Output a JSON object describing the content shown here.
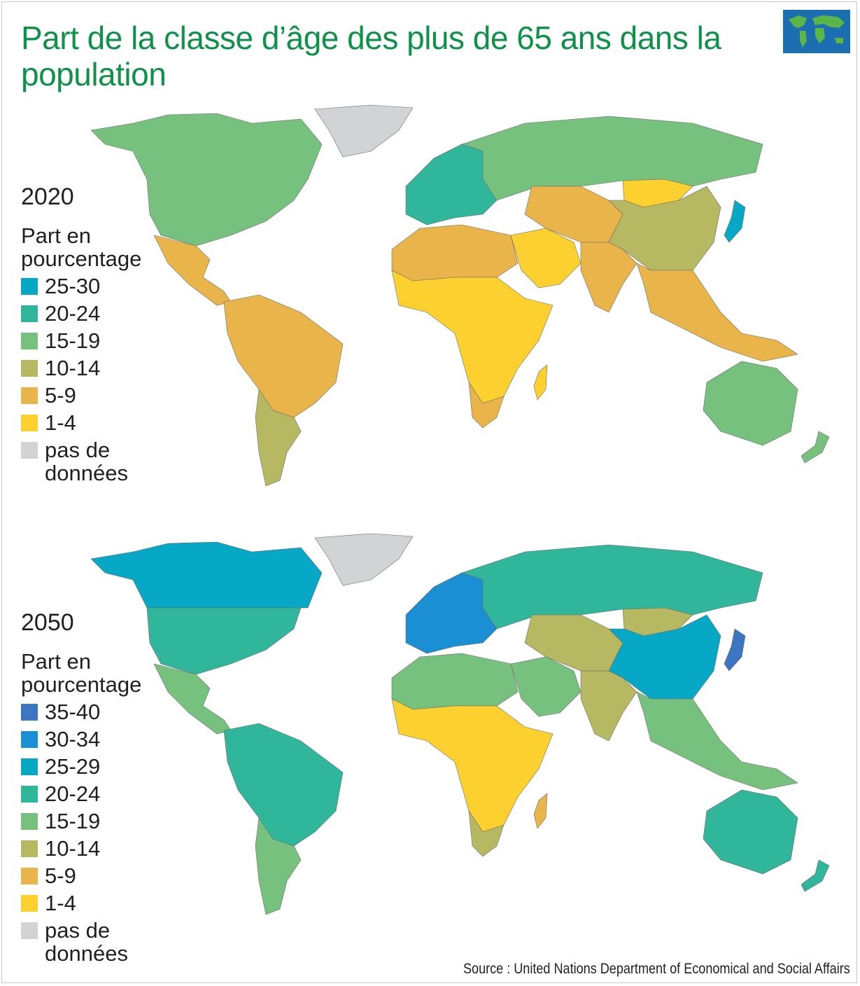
{
  "title": "Part de la classe d’âge des plus de 65 ans dans la population",
  "source": "Source : United Nations Department of Economical and Social Affairs",
  "colors": {
    "c35_40": "#3c75c1",
    "c30_34": "#1a8fd4",
    "c25_30": "#06a8c6",
    "c20_24": "#30b69b",
    "c15_19": "#77c17e",
    "c10_14": "#b7b862",
    "c5_9": "#e9b449",
    "c1_4": "#fcd12f",
    "nodata": "#d2d3d5",
    "title": "#0e9149"
  },
  "maps": [
    {
      "year": "2020",
      "legend_title": "Part en pourcentage",
      "legend": [
        {
          "label": "25-30",
          "color": "#06a8c6"
        },
        {
          "label": "20-24",
          "color": "#30b69b"
        },
        {
          "label": "15-19",
          "color": "#77c17e"
        },
        {
          "label": "10-14",
          "color": "#b7b862"
        },
        {
          "label": "5-9",
          "color": "#e9b449"
        },
        {
          "label": "1-4",
          "color": "#fcd12f"
        },
        {
          "label": "pas de données",
          "color": "#d2d3d5"
        }
      ],
      "regions": {
        "north_america": "#77c17e",
        "greenland": "#d2d3d5",
        "central_america": "#e9b449",
        "south_america_north": "#e9b449",
        "south_america_south": "#b7b862",
        "europe": "#30b69b",
        "russia": "#77c17e",
        "north_africa": "#e9b449",
        "africa": "#fcd12f",
        "southern_africa": "#e9b449",
        "middle_east": "#fcd12f",
        "central_asia": "#e9b449",
        "mongolia": "#fcd12f",
        "china": "#b7b862",
        "india": "#e9b449",
        "southeast_asia": "#e9b449",
        "japan": "#06a8c6",
        "australia": "#77c17e",
        "new_zealand": "#77c17e",
        "madagascar": "#fcd12f"
      }
    },
    {
      "year": "2050",
      "legend_title": "Part en pourcentage",
      "legend": [
        {
          "label": "35-40",
          "color": "#3c75c1"
        },
        {
          "label": "30-34",
          "color": "#1a8fd4"
        },
        {
          "label": "25-29",
          "color": "#06a8c6"
        },
        {
          "label": "20-24",
          "color": "#30b69b"
        },
        {
          "label": "15-19",
          "color": "#77c17e"
        },
        {
          "label": "10-14",
          "color": "#b7b862"
        },
        {
          "label": "5-9",
          "color": "#e9b449"
        },
        {
          "label": "1-4",
          "color": "#fcd12f"
        },
        {
          "label": "pas de données",
          "color": "#d2d3d5"
        }
      ],
      "regions": {
        "north_america": "#30b69b",
        "canada": "#06a8c6",
        "greenland": "#d2d3d5",
        "central_america": "#77c17e",
        "south_america_north": "#30b69b",
        "south_america_south": "#77c17e",
        "europe": "#1a8fd4",
        "russia": "#30b69b",
        "north_africa": "#77c17e",
        "africa": "#fcd12f",
        "southern_africa": "#b7b862",
        "middle_east": "#77c17e",
        "central_asia": "#b7b862",
        "mongolia": "#b7b862",
        "china": "#06a8c6",
        "india": "#b7b862",
        "southeast_asia": "#77c17e",
        "japan": "#3c75c1",
        "australia": "#30b69b",
        "new_zealand": "#30b69b",
        "madagascar": "#e9b449"
      }
    }
  ]
}
